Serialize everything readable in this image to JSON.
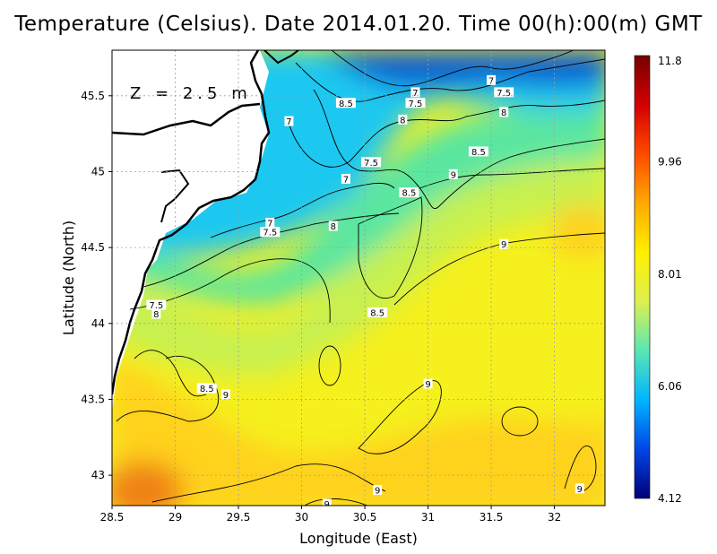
{
  "title": "Temperature (Celsius). Date 2014.01.20. Time 00(h):00(m)  GMT",
  "depth_label": "Z = 2.5 m",
  "x_axis": {
    "label": "Longitude (East)",
    "range": [
      28.5,
      32.4
    ],
    "ticks": [
      "28.5",
      "29",
      "29.5",
      "30",
      "30.5",
      "31",
      "31.5",
      "32"
    ]
  },
  "y_axis": {
    "label": "Latitude (North)",
    "range": [
      42.8,
      45.8
    ],
    "ticks": [
      "43",
      "43.5",
      "44",
      "44.5",
      "45",
      "45.5"
    ]
  },
  "colorbar": {
    "ticks": [
      "11.8",
      "9.96",
      "8.01",
      "6.06",
      "4.12"
    ],
    "min": 4.12,
    "max": 11.8,
    "colors": [
      "#00007a",
      "#0046e6",
      "#00b4ff",
      "#5ae6b4",
      "#dcf050",
      "#fff000",
      "#ffaa00",
      "#ff4a00",
      "#d20000",
      "#780000"
    ]
  },
  "map_colors": {
    "coldest": "#0a5ad2",
    "cold": "#1ec8f0",
    "cool": "#5ae6a0",
    "mid": "#c8f050",
    "warm_yellow": "#f5f01e",
    "warmer": "#ffd21e",
    "warmest": "#f08214",
    "land": "#ffffff",
    "grid": "#a0a0a0"
  },
  "contour_labels": [
    {
      "value": "7",
      "lon": 31.5,
      "lat": 45.6
    },
    {
      "value": "7.5",
      "lon": 31.6,
      "lat": 45.52
    },
    {
      "value": "7",
      "lon": 30.9,
      "lat": 45.52
    },
    {
      "value": "7.5",
      "lon": 30.9,
      "lat": 45.45
    },
    {
      "value": "8.5",
      "lon": 30.35,
      "lat": 45.45
    },
    {
      "value": "8",
      "lon": 31.6,
      "lat": 45.39
    },
    {
      "value": "8",
      "lon": 30.8,
      "lat": 45.34
    },
    {
      "value": "7",
      "lon": 29.9,
      "lat": 45.33
    },
    {
      "value": "8.5",
      "lon": 31.4,
      "lat": 45.13
    },
    {
      "value": "7.5",
      "lon": 30.55,
      "lat": 45.06
    },
    {
      "value": "7",
      "lon": 30.35,
      "lat": 44.95
    },
    {
      "value": "9",
      "lon": 31.2,
      "lat": 44.98
    },
    {
      "value": "8.5",
      "lon": 30.85,
      "lat": 44.86
    },
    {
      "value": "7",
      "lon": 29.75,
      "lat": 44.66
    },
    {
      "value": "7.5",
      "lon": 29.75,
      "lat": 44.6
    },
    {
      "value": "8",
      "lon": 30.25,
      "lat": 44.64
    },
    {
      "value": "9",
      "lon": 31.6,
      "lat": 44.52
    },
    {
      "value": "7.5",
      "lon": 28.85,
      "lat": 44.12
    },
    {
      "value": "8",
      "lon": 28.85,
      "lat": 44.06
    },
    {
      "value": "8.5",
      "lon": 30.6,
      "lat": 44.07
    },
    {
      "value": "8.5",
      "lon": 29.25,
      "lat": 43.57
    },
    {
      "value": "9",
      "lon": 29.4,
      "lat": 43.53
    },
    {
      "value": "9",
      "lon": 31.0,
      "lat": 43.6
    },
    {
      "value": "9",
      "lon": 30.6,
      "lat": 42.9
    },
    {
      "value": "9",
      "lon": 32.2,
      "lat": 42.91
    },
    {
      "value": "9",
      "lon": 30.2,
      "lat": 42.81
    }
  ]
}
